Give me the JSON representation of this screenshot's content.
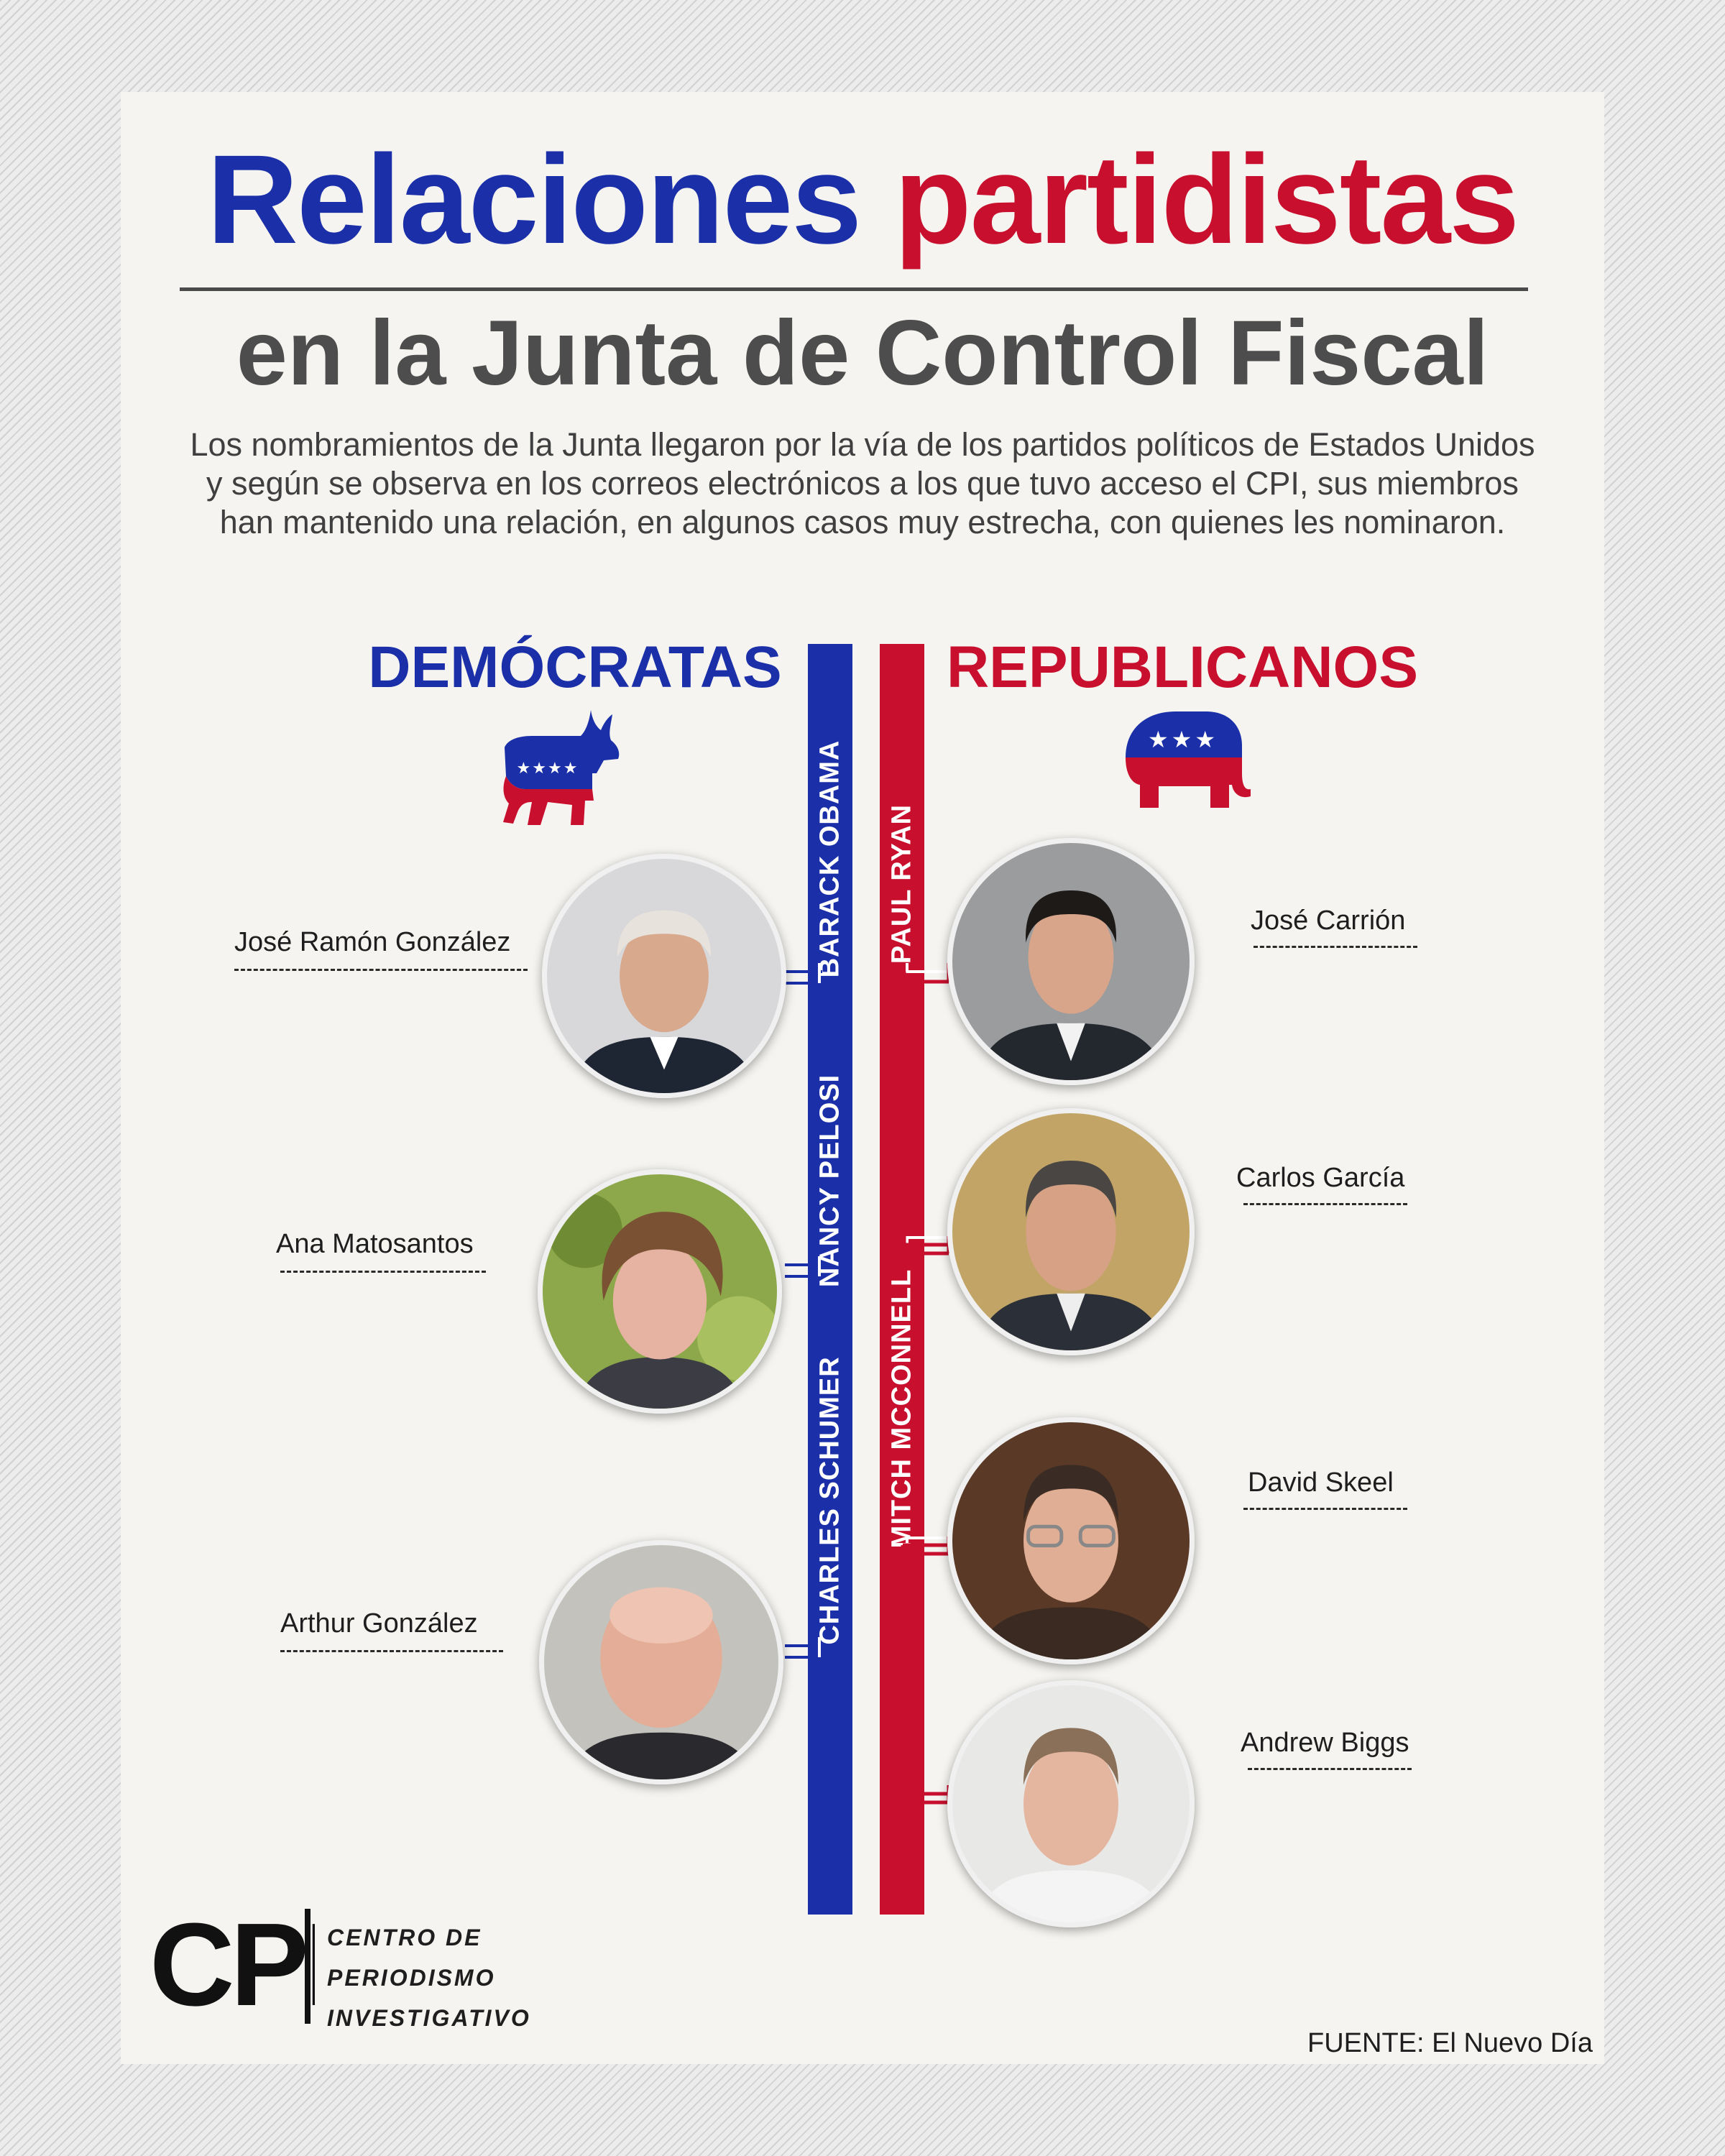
{
  "title": {
    "part1": "Relaciones",
    "part2": "partidistas"
  },
  "subtitle": "en la Junta de Control Fiscal",
  "intro": "Los nombramientos de la Junta llegaron por la vía de los partidos políticos de Estados Unidos y según se observa en los correos electrónicos a los que tuvo acceso el CPI, sus miembros han mantenido una relación, en algunos casos muy estrecha, con quienes les nominaron.",
  "democrats": {
    "title": "DEMÓCRATAS",
    "nominators": [
      "BARACK OBAMA",
      "NANCY PELOSI",
      "CHARLES SCHUMER"
    ],
    "members": [
      "José Ramón González",
      "Ana Matosantos",
      "Arthur González"
    ]
  },
  "republicans": {
    "title": "REPUBLICANOS",
    "nominators": [
      "PAUL RYAN",
      "MITCH MCCONNELL"
    ],
    "members": [
      "José Carrión",
      "Carlos García",
      "David Skeel",
      "Andrew Biggs"
    ]
  },
  "logo": {
    "mark": "CPI",
    "lines": [
      "CENTRO DE",
      "PERIODISMO",
      "INVESTIGATIVO"
    ]
  },
  "source": "FUENTE: El Nuevo Día",
  "colors": {
    "democrat": "#1a2fa8",
    "republican": "#c8102e",
    "text": "#4d4d4d"
  },
  "icons": {
    "democrat": "donkey-icon",
    "republican": "elephant-icon"
  }
}
